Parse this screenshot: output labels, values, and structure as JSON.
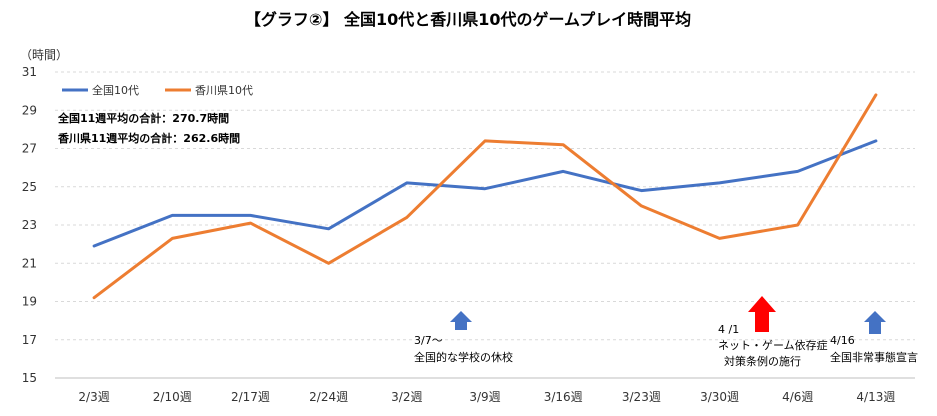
{
  "chart_data": {
    "type": "line",
    "title": "【グラフ②】 全国10代と香川県10代のゲームプレイ時間平均",
    "ylabel": "（時間）",
    "xlabel": "",
    "ylim": [
      15,
      31
    ],
    "yticks": [
      15,
      17,
      19,
      21,
      23,
      25,
      27,
      29,
      31
    ],
    "grid": true,
    "legend_position": "top-left",
    "categories": [
      "2/3週",
      "2/10週",
      "2/17週",
      "2/24週",
      "3/2週",
      "3/9週",
      "3/16週",
      "3/23週",
      "3/30週",
      "4/6週",
      "4/13週"
    ],
    "series": [
      {
        "name": "全国10代",
        "color": "#4472C4",
        "values": [
          21.9,
          23.5,
          23.5,
          22.8,
          25.2,
          24.9,
          25.8,
          24.8,
          25.2,
          25.8,
          27.4
        ]
      },
      {
        "name": "香川県10代",
        "color": "#ED7D31",
        "values": [
          19.2,
          22.3,
          23.1,
          21.0,
          23.4,
          27.4,
          27.2,
          24.0,
          22.3,
          23.0,
          29.8
        ]
      }
    ],
    "notes": [
      "全国11週平均の合計：270.7時間",
      "香川県11週平均の合計：262.6時間"
    ],
    "annotations": [
      {
        "id": "school-closure",
        "lines": [
          "3/7～",
          "全国的な学校の休校"
        ],
        "arrow_color": "#4472C4"
      },
      {
        "id": "ordinance",
        "lines": [
          "4 /1",
          "ネット・ゲーム依存症",
          "対策条例の施行"
        ],
        "arrow_color": "#FF0000"
      },
      {
        "id": "emergency",
        "lines": [
          "4/16",
          "全国非常事態宣言"
        ],
        "arrow_color": "#4472C4"
      }
    ]
  }
}
